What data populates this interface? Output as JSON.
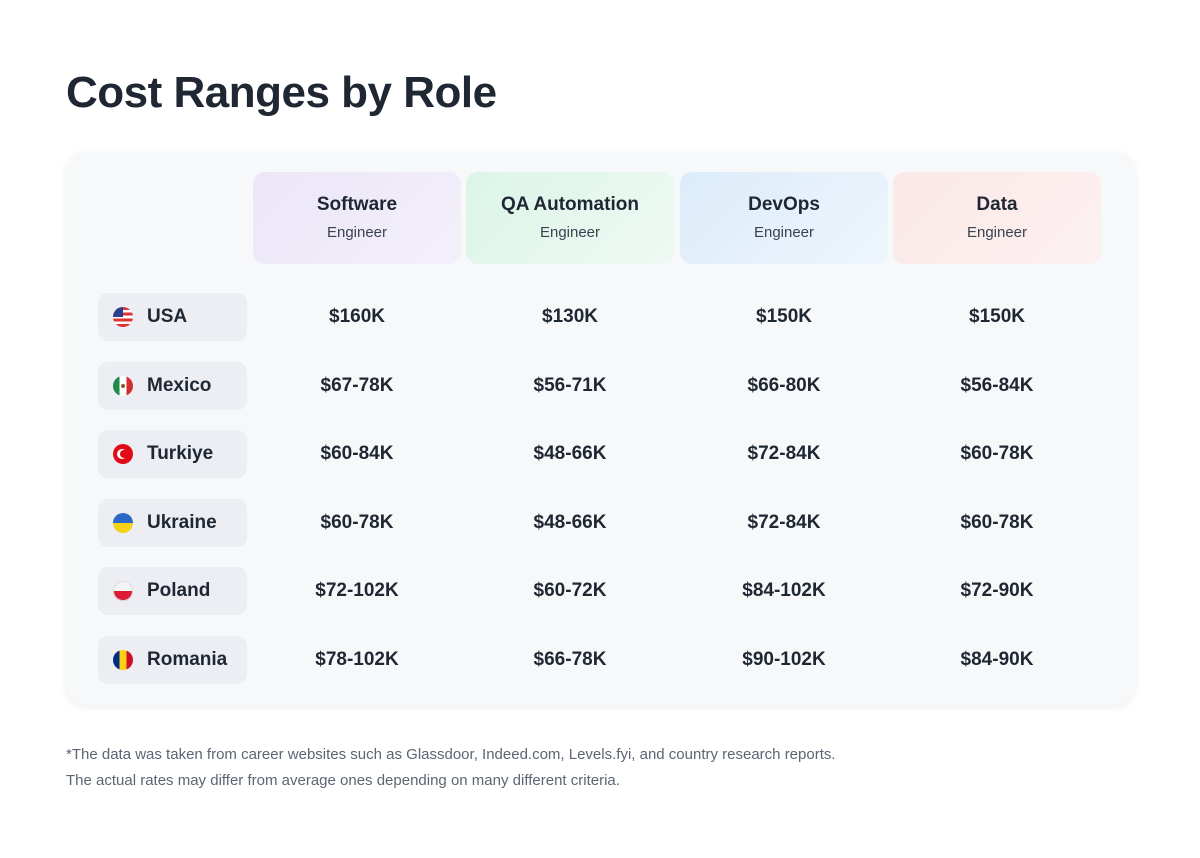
{
  "title": "Cost Ranges by Role",
  "chart_data": {
    "type": "table",
    "columns": [
      {
        "role": "Software",
        "sub": "Engineer"
      },
      {
        "role": "QA Automation",
        "sub": "Engineer"
      },
      {
        "role": "DevOps",
        "sub": "Engineer"
      },
      {
        "role": "Data",
        "sub": "Engineer"
      }
    ],
    "rows": [
      {
        "country": "USA",
        "flag": "usa-flag-icon",
        "values": [
          "$160K",
          "$130K",
          "$150K",
          "$150K"
        ]
      },
      {
        "country": "Mexico",
        "flag": "mexico-flag-icon",
        "values": [
          "$67-78K",
          "$56-71K",
          "$66-80K",
          "$56-84K"
        ]
      },
      {
        "country": "Turkiye",
        "flag": "turkey-flag-icon",
        "values": [
          "$60-84K",
          "$48-66K",
          "$72-84K",
          "$60-78K"
        ]
      },
      {
        "country": "Ukraine",
        "flag": "ukraine-flag-icon",
        "values": [
          "$60-78K",
          "$48-66K",
          "$72-84K",
          "$60-78K"
        ]
      },
      {
        "country": "Poland",
        "flag": "poland-flag-icon",
        "values": [
          "$72-102K",
          "$60-72K",
          "$84-102K",
          "$72-90K"
        ]
      },
      {
        "country": "Romania",
        "flag": "romania-flag-icon",
        "values": [
          "$78-102K",
          "$66-78K",
          "$90-102K",
          "$84-90K"
        ]
      }
    ]
  },
  "footnote": {
    "line1": "*The data was taken from career websites such as Glassdoor, Indeed.com, Levels.fyi, and country research reports.",
    "line2": "The actual rates may differ from average ones depending on many different criteria."
  },
  "colors": {
    "software_header": "#ece6f7",
    "qa_header": "#dcf5e8",
    "devops_header": "#dcecfa",
    "data_header": "#fbe7e7"
  }
}
